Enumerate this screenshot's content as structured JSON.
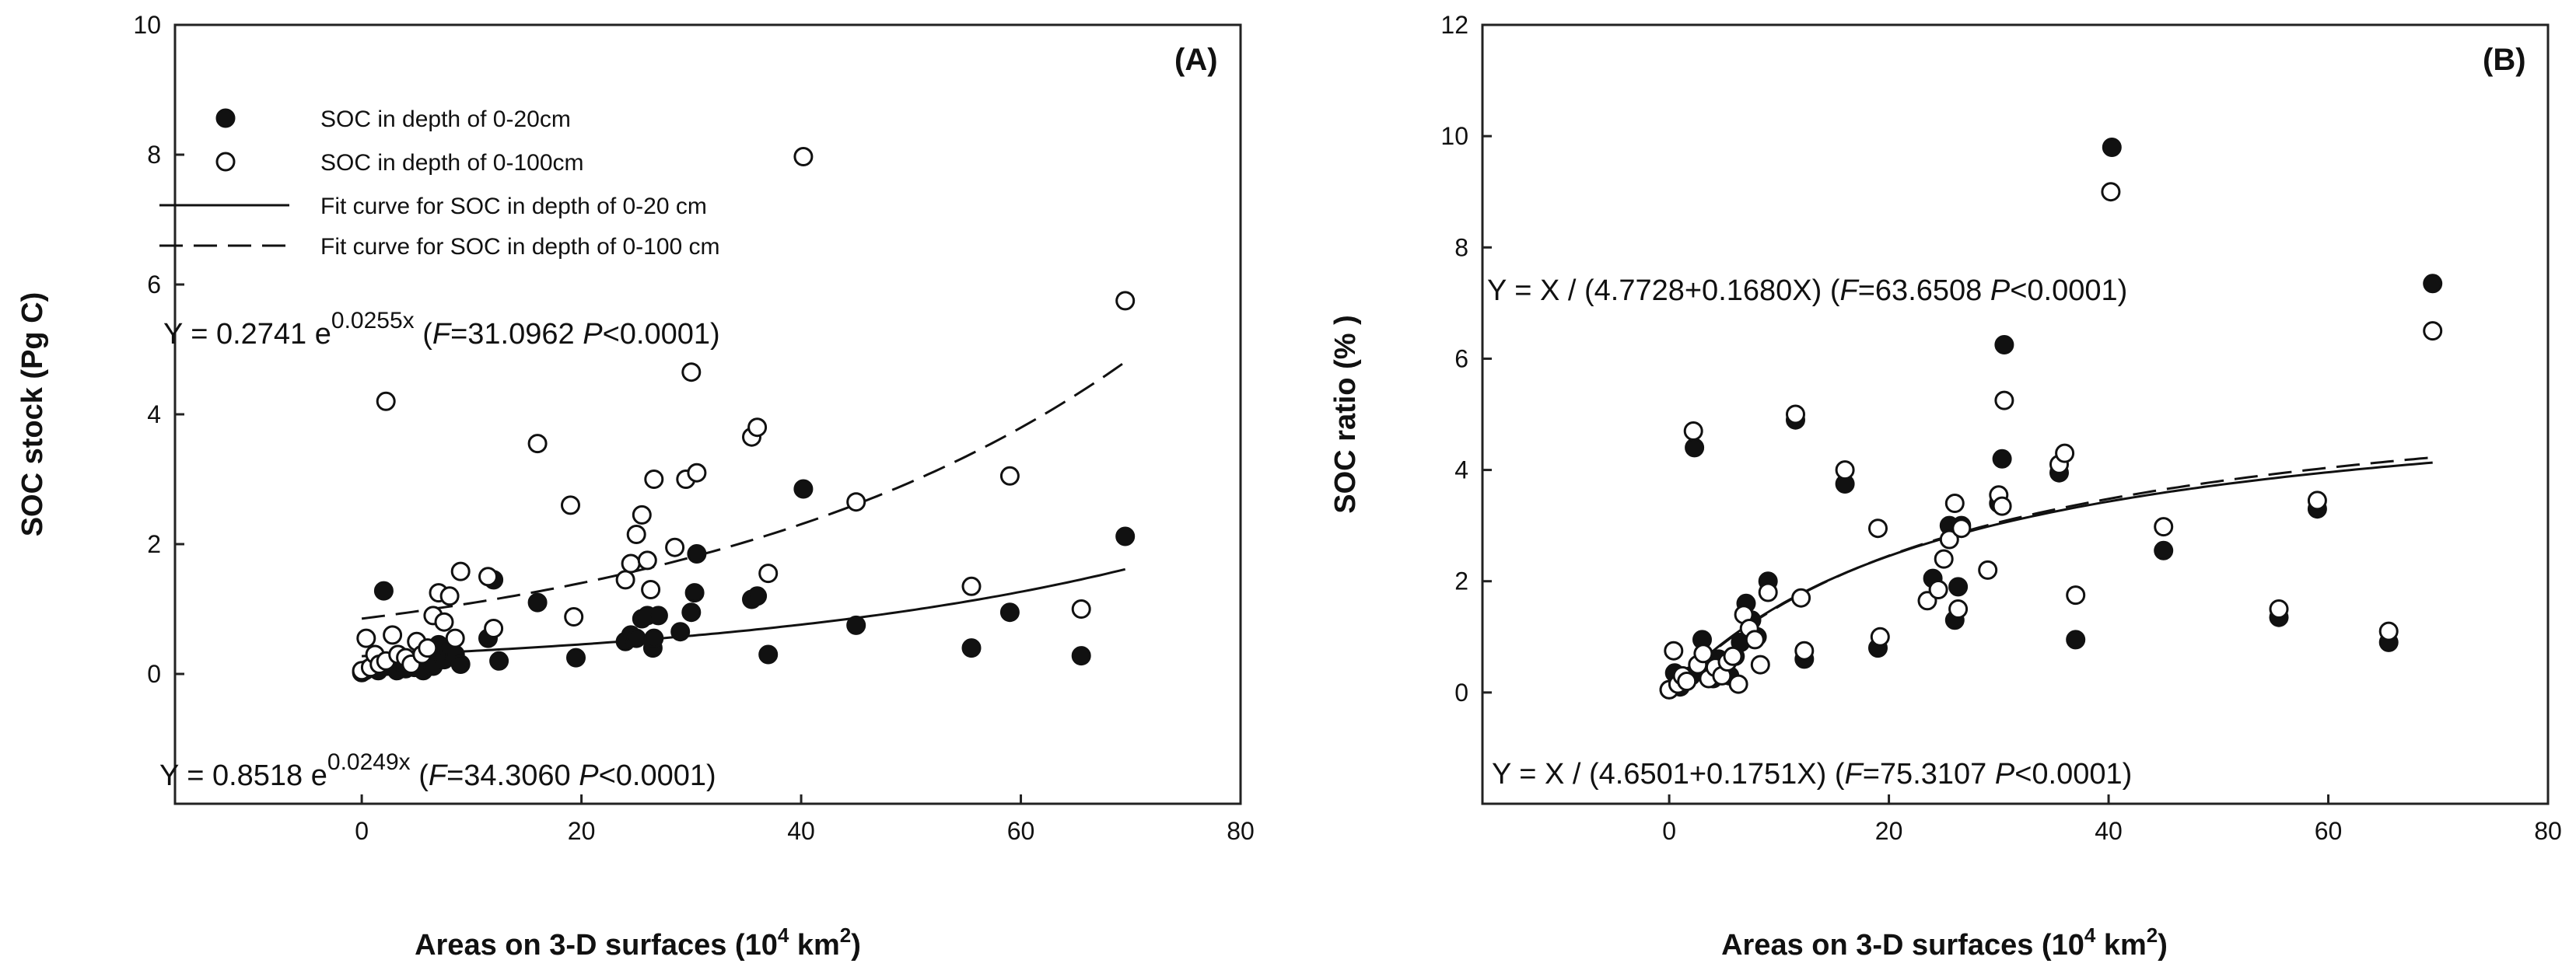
{
  "chart_data": [
    {
      "type": "scatter",
      "panel_label": "(A)",
      "xlabel": "Areas on 3-D surfaces (10",
      "xlabel_sup": "4",
      "xlabel_unit": " km",
      "xlabel_unit_sup": "2",
      "xlabel_close": ")",
      "ylabel": "SOC stock (Pg C)",
      "xlim": [
        -17,
        80
      ],
      "ylim": [
        -2,
        10
      ],
      "xticks": [
        "0",
        "20",
        "40",
        "60",
        "80"
      ],
      "yticks": [
        "0",
        "2",
        "4",
        "6",
        "8",
        "10"
      ],
      "legend": {
        "location": "top-left",
        "entries": [
          {
            "marker": "filled-circle",
            "label": "SOC in depth of 0-20cm"
          },
          {
            "marker": "open-circle",
            "label": "SOC in depth of 0-100cm"
          },
          {
            "marker": "solid-line",
            "label": "Fit curve for  SOC in depth of 0-20 cm"
          },
          {
            "marker": "dashed-line",
            "label": "Fit curve for  SOC in depth of 0-100 cm"
          }
        ]
      },
      "equations": [
        {
          "prefix": "Y = 0.2741 e",
          "exp": "0.0255x",
          "stat_open": " (",
          "f_label": "F",
          "f_value": "=31.0962 ",
          "p_label": "P",
          "p_value": "<0.0001)"
        },
        {
          "prefix": "Y = 0.8518 e",
          "exp": "0.0249x",
          "stat_open": " (",
          "f_label": "F",
          "f_value": "=34.3060 ",
          "p_label": "P",
          "p_value": "<0.0001)"
        }
      ],
      "fits": [
        {
          "name": "Fit curve for SOC in depth of 0-20 cm",
          "style": "solid",
          "model": "exp",
          "a": 0.2741,
          "b": 0.0255,
          "x_range": [
            0,
            69.5
          ]
        },
        {
          "name": "Fit curve for SOC in depth of 0-100 cm",
          "style": "dashed",
          "model": "exp",
          "a": 0.8518,
          "b": 0.0249,
          "x_range": [
            0,
            69.5
          ]
        }
      ],
      "series": [
        {
          "name": "SOC in depth of 0-20cm",
          "marker": "filled",
          "x": [
            0,
            0.3,
            0.6,
            1,
            1.5,
            2,
            2.3,
            2.8,
            3.2,
            3.6,
            4,
            4.4,
            4.8,
            5.2,
            5.6,
            6,
            6.5,
            7,
            7.5,
            8,
            8.5,
            9,
            11.5,
            12,
            12.5,
            16,
            19.5,
            24,
            24.5,
            25,
            25.5,
            26,
            26.5,
            26.6,
            27,
            29,
            30,
            30.3,
            30.5,
            35.5,
            36,
            37,
            40.2,
            45,
            55.5,
            59,
            65.5,
            69.5
          ],
          "y": [
            0.02,
            0.05,
            0.08,
            0.1,
            0.05,
            1.28,
            0.12,
            0.15,
            0.05,
            0.18,
            0.08,
            0.2,
            0.1,
            0.25,
            0.05,
            0.3,
            0.12,
            0.45,
            0.22,
            0.35,
            0.3,
            0.15,
            0.55,
            1.45,
            0.2,
            1.1,
            0.25,
            0.5,
            0.6,
            0.55,
            0.85,
            0.9,
            0.4,
            0.55,
            0.9,
            0.65,
            0.95,
            1.25,
            1.85,
            1.15,
            1.2,
            0.3,
            2.85,
            0.75,
            0.4,
            0.95,
            0.28,
            2.12
          ]
        },
        {
          "name": "SOC in depth of 0-100cm",
          "marker": "open",
          "x": [
            0,
            0.4,
            0.8,
            1.2,
            1.6,
            2.2,
            2.8,
            3.3,
            4,
            4.5,
            5,
            5.5,
            6,
            6.5,
            7,
            7.5,
            8,
            8.5,
            9,
            2.2,
            11.5,
            12,
            16,
            19,
            19.3,
            24,
            24.5,
            25,
            25.5,
            26,
            26.3,
            26.6,
            28.5,
            29.5,
            30,
            30.5,
            35.5,
            36,
            37,
            40.2,
            45,
            55.5,
            59,
            65.5,
            69.5
          ],
          "y": [
            0.05,
            0.55,
            0.1,
            0.3,
            0.15,
            0.2,
            0.6,
            0.3,
            0.25,
            0.15,
            0.5,
            0.3,
            0.4,
            0.9,
            1.25,
            0.8,
            1.2,
            0.55,
            1.58,
            4.2,
            1.5,
            0.7,
            3.55,
            2.6,
            0.88,
            1.45,
            1.7,
            2.15,
            2.45,
            1.75,
            1.3,
            3.0,
            1.95,
            3.0,
            4.65,
            3.1,
            3.65,
            3.8,
            1.55,
            7.97,
            2.65,
            1.35,
            3.05,
            1.0,
            5.75
          ]
        }
      ]
    },
    {
      "type": "scatter",
      "panel_label": "(B)",
      "xlabel": "Areas on 3-D surfaces (10",
      "xlabel_sup": "4",
      "xlabel_unit": " km",
      "xlabel_unit_sup": "2",
      "xlabel_close": ")",
      "ylabel": "SOC ratio (% )",
      "xlim": [
        -17,
        80
      ],
      "ylim": [
        -2,
        12
      ],
      "xticks": [
        "0",
        "20",
        "40",
        "60",
        "80"
      ],
      "yticks": [
        "0",
        "2",
        "4",
        "6",
        "8",
        "10",
        "12"
      ],
      "equations": [
        {
          "prefix": "Y = X / (4.7728+0.1680X)",
          "exp": "",
          "stat_open": " (",
          "f_label": "F",
          "f_value": "=63.6508 ",
          "p_label": "P",
          "p_value": "<0.0001)"
        },
        {
          "prefix": "Y = X / (4.6501+0.1751X)",
          "exp": "",
          "stat_open": " (",
          "f_label": "F",
          "f_value": "=75.3107 ",
          "p_label": "P",
          "p_value": "<0.0001)"
        }
      ],
      "fits": [
        {
          "name": "Fit curve for SOC in depth of 0-20 cm",
          "style": "solid",
          "model": "hyperbolic",
          "a": 4.6501,
          "b": 0.1751,
          "x_range": [
            0,
            69.5
          ]
        },
        {
          "name": "Fit curve for SOC in depth of 0-100 cm",
          "style": "dashed",
          "model": "hyperbolic",
          "a": 4.7728,
          "b": 0.168,
          "x_range": [
            0,
            69.5
          ]
        }
      ],
      "series": [
        {
          "name": "SOC in depth of 0-20cm",
          "marker": "filled",
          "x": [
            0,
            0.5,
            1,
            1.5,
            2,
            2.3,
            3,
            3.5,
            4,
            4.5,
            5,
            5.5,
            6,
            6.5,
            7,
            7.5,
            8,
            9,
            11.5,
            12.3,
            16,
            19,
            24,
            25.5,
            26,
            26.3,
            26.6,
            30,
            30.3,
            30.5,
            35.5,
            37,
            40.3,
            45,
            55.5,
            59,
            65.5,
            69.5
          ],
          "y": [
            0.05,
            0.35,
            0.1,
            0.2,
            0.3,
            4.4,
            0.95,
            0.4,
            0.25,
            0.6,
            0.45,
            0.3,
            0.65,
            0.9,
            1.6,
            1.3,
            1.0,
            2.0,
            4.9,
            0.6,
            3.75,
            0.8,
            2.05,
            3.0,
            1.3,
            1.9,
            3.0,
            3.4,
            4.2,
            6.25,
            3.95,
            0.95,
            9.8,
            2.55,
            1.35,
            3.3,
            0.9,
            7.35
          ]
        },
        {
          "name": "SOC in depth of 0-100cm",
          "marker": "open",
          "x": [
            0,
            0.4,
            0.8,
            1.2,
            1.6,
            2.2,
            2.6,
            3.1,
            3.6,
            4.2,
            4.8,
            5.3,
            5.8,
            6.3,
            6.8,
            7.3,
            7.8,
            8.3,
            9,
            11.5,
            12,
            12.3,
            16,
            19,
            19.2,
            23.5,
            24.5,
            25,
            25.5,
            26,
            26.3,
            26.6,
            29,
            30,
            30.3,
            30.5,
            35.5,
            36,
            37,
            40.2,
            45,
            55.5,
            59,
            65.5,
            69.5
          ],
          "y": [
            0.05,
            0.75,
            0.15,
            0.3,
            0.2,
            4.7,
            0.5,
            0.7,
            0.25,
            0.45,
            0.3,
            0.55,
            0.65,
            0.15,
            1.4,
            1.15,
            0.95,
            0.5,
            1.8,
            5.0,
            1.7,
            0.75,
            4.0,
            2.95,
            1.0,
            1.65,
            1.85,
            2.4,
            2.75,
            3.4,
            1.5,
            2.95,
            2.2,
            3.55,
            3.35,
            5.25,
            4.1,
            4.3,
            1.75,
            9.0,
            2.98,
            1.5,
            3.45,
            1.1,
            6.5
          ]
        }
      ]
    }
  ]
}
